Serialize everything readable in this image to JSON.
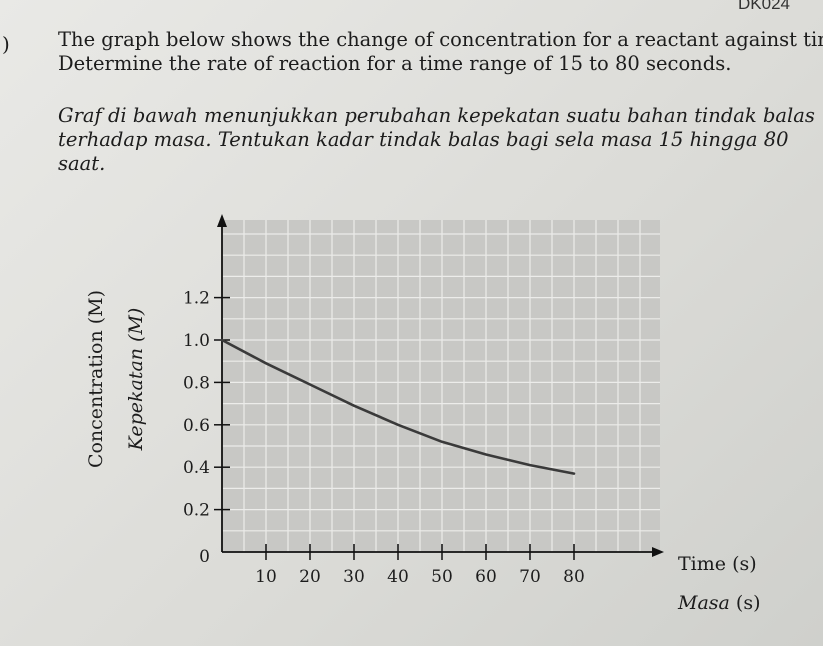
{
  "header": {
    "code": "DK024",
    "question_mark": ")"
  },
  "question": {
    "english": [
      "The graph below shows the change of concentration for a reactant against time.",
      "Determine the rate of reaction for a time range of 15 to 80 seconds."
    ],
    "malay": [
      "Graf di bawah menunjukkan perubahan kepekatan suatu bahan tindak balas",
      "terhadap masa. Tentukan kadar tindak balas bagi sela masa 15 hingga 80",
      "saat."
    ]
  },
  "chart_data": {
    "type": "line",
    "ylabel": "Concentration (M)",
    "ylabel_alt": "Kepekatan (M)",
    "xlabel": "Time",
    "xlabel_alt": "Masa",
    "xunit": "(s)",
    "xlim": [
      0,
      95
    ],
    "ylim": [
      0,
      1.5
    ],
    "x_ticks": [
      "10",
      "20",
      "30",
      "40",
      "50",
      "60",
      "70",
      "80"
    ],
    "y_ticks": [
      "0.2",
      "0.4",
      "0.6",
      "0.8",
      "1.0",
      "1.2"
    ],
    "origin_label": "0",
    "grid": true,
    "series": [
      {
        "x": [
          0,
          10,
          20,
          30,
          40,
          50,
          60,
          70,
          80
        ],
        "y": [
          1.0,
          0.89,
          0.79,
          0.69,
          0.6,
          0.52,
          0.46,
          0.41,
          0.37
        ]
      }
    ],
    "colors": {
      "plot_bg": "#c8c8c5",
      "grid": "#ececea",
      "curve": "#3a3a3a",
      "axis": "#111111"
    }
  }
}
